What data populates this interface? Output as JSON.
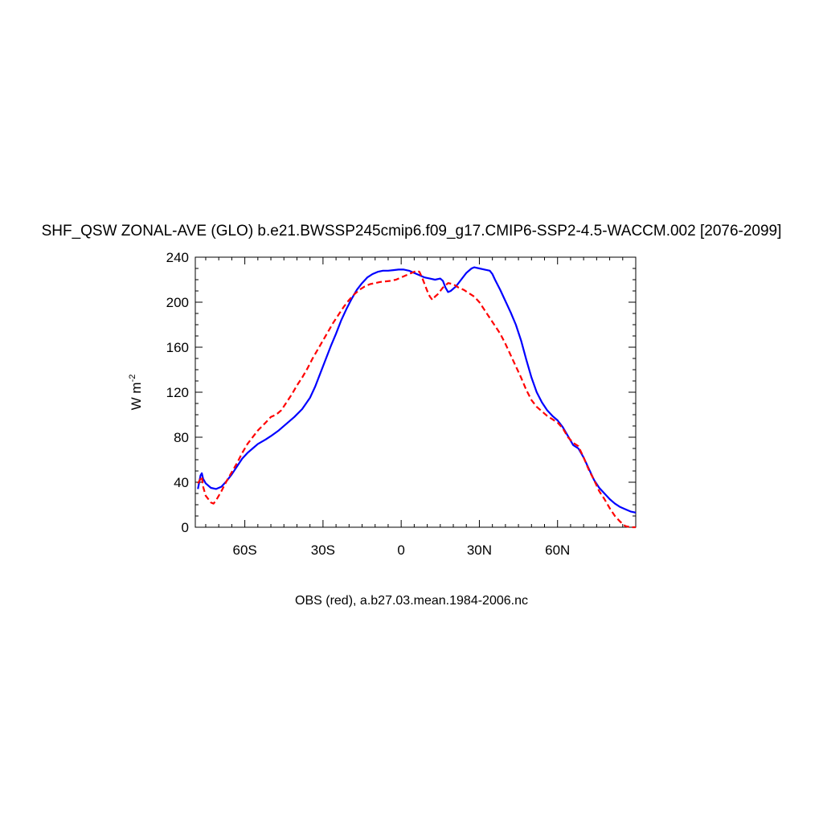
{
  "chart_data": {
    "type": "line",
    "title": "SHF_QSW ZONAL-AVE (GLO) b.e21.BWSSP245cmip6.f09_g17.CMIP6-SSP2-4.5-WACCM.002 [2076-2099]",
    "ylabel": "W m",
    "ylabel_sup": "-2",
    "caption": "OBS (red), a.b27.03.mean.1984-2006.nc",
    "xlim": [
      -79,
      90
    ],
    "ylim": [
      0,
      240
    ],
    "x_ticks": [
      {
        "value": -60,
        "label": "60S"
      },
      {
        "value": -30,
        "label": "30S"
      },
      {
        "value": 0,
        "label": "0"
      },
      {
        "value": 30,
        "label": "30N"
      },
      {
        "value": 60,
        "label": "60N"
      }
    ],
    "y_ticks": [
      {
        "value": 0,
        "label": "0"
      },
      {
        "value": 40,
        "label": "40"
      },
      {
        "value": 80,
        "label": "80"
      },
      {
        "value": 120,
        "label": "120"
      },
      {
        "value": 160,
        "label": "160"
      },
      {
        "value": 200,
        "label": "200"
      },
      {
        "value": 240,
        "label": "240"
      }
    ],
    "grid": false,
    "series": [
      {
        "color": "#0000ff",
        "dash": "solid",
        "points": [
          [
            -78,
            34
          ],
          [
            -77,
            46
          ],
          [
            -76.5,
            48
          ],
          [
            -76,
            43
          ],
          [
            -75,
            39
          ],
          [
            -73,
            35
          ],
          [
            -71,
            34
          ],
          [
            -69,
            36
          ],
          [
            -67,
            41
          ],
          [
            -65,
            47
          ],
          [
            -63,
            54
          ],
          [
            -61,
            61
          ],
          [
            -59,
            66
          ],
          [
            -57,
            70
          ],
          [
            -55,
            74
          ],
          [
            -52,
            78
          ],
          [
            -50,
            81
          ],
          [
            -47,
            86
          ],
          [
            -44,
            92
          ],
          [
            -41,
            98
          ],
          [
            -38,
            105
          ],
          [
            -35,
            115
          ],
          [
            -33,
            125
          ],
          [
            -31,
            137
          ],
          [
            -29,
            149
          ],
          [
            -27,
            161
          ],
          [
            -25,
            172
          ],
          [
            -23,
            184
          ],
          [
            -21,
            194
          ],
          [
            -19,
            203
          ],
          [
            -17,
            211
          ],
          [
            -15,
            217
          ],
          [
            -13,
            222
          ],
          [
            -11,
            225
          ],
          [
            -9,
            227
          ],
          [
            -7,
            228
          ],
          [
            -5,
            228
          ],
          [
            -3,
            228.5
          ],
          [
            -1,
            229
          ],
          [
            1,
            229
          ],
          [
            3,
            228
          ],
          [
            5,
            226
          ],
          [
            7,
            224
          ],
          [
            9,
            222
          ],
          [
            11,
            221
          ],
          [
            13,
            220
          ],
          [
            15,
            221
          ],
          [
            16,
            219
          ],
          [
            17,
            213
          ],
          [
            18,
            209
          ],
          [
            19,
            210
          ],
          [
            21,
            214
          ],
          [
            23,
            220
          ],
          [
            25,
            226
          ],
          [
            27,
            230
          ],
          [
            28,
            231
          ],
          [
            30,
            230
          ],
          [
            32,
            229
          ],
          [
            34,
            228
          ],
          [
            35,
            225
          ],
          [
            36,
            220
          ],
          [
            38,
            211
          ],
          [
            40,
            201
          ],
          [
            42,
            191
          ],
          [
            44,
            180
          ],
          [
            46,
            166
          ],
          [
            48,
            149
          ],
          [
            50,
            133
          ],
          [
            52,
            120
          ],
          [
            54,
            111
          ],
          [
            56,
            104
          ],
          [
            58,
            99
          ],
          [
            60,
            95
          ],
          [
            62,
            89
          ],
          [
            64,
            81
          ],
          [
            66,
            73
          ],
          [
            68,
            70
          ],
          [
            70,
            62
          ],
          [
            72,
            52
          ],
          [
            74,
            42
          ],
          [
            76,
            35
          ],
          [
            78,
            30
          ],
          [
            80,
            25
          ],
          [
            82,
            21
          ],
          [
            84,
            18
          ],
          [
            86,
            16
          ],
          [
            88,
            14
          ],
          [
            90,
            13
          ]
        ]
      },
      {
        "color": "#ff0000",
        "dash": "dashed",
        "points": [
          [
            -78,
            39
          ],
          [
            -77,
            43
          ],
          [
            -76.5,
            45
          ],
          [
            -76,
            36
          ],
          [
            -75,
            28
          ],
          [
            -73,
            22
          ],
          [
            -72,
            21
          ],
          [
            -71,
            24
          ],
          [
            -69,
            32
          ],
          [
            -67,
            41
          ],
          [
            -65,
            49
          ],
          [
            -63,
            57
          ],
          [
            -61,
            66
          ],
          [
            -59,
            74
          ],
          [
            -57,
            80
          ],
          [
            -55,
            86
          ],
          [
            -52,
            93
          ],
          [
            -50,
            98
          ],
          [
            -48,
            100
          ],
          [
            -46,
            104
          ],
          [
            -44,
            111
          ],
          [
            -42,
            118
          ],
          [
            -40,
            126
          ],
          [
            -38,
            133
          ],
          [
            -36,
            141
          ],
          [
            -34,
            150
          ],
          [
            -32,
            158
          ],
          [
            -30,
            166
          ],
          [
            -28,
            174
          ],
          [
            -26,
            182
          ],
          [
            -24,
            189
          ],
          [
            -22,
            196
          ],
          [
            -20,
            202
          ],
          [
            -18,
            207
          ],
          [
            -16,
            211
          ],
          [
            -14,
            214
          ],
          [
            -12,
            216
          ],
          [
            -10,
            217
          ],
          [
            -8,
            218
          ],
          [
            -6,
            218.5
          ],
          [
            -4,
            219
          ],
          [
            -2,
            220
          ],
          [
            0,
            222
          ],
          [
            2,
            224
          ],
          [
            4,
            226
          ],
          [
            6,
            228
          ],
          [
            7,
            227
          ],
          [
            8,
            222
          ],
          [
            9,
            216
          ],
          [
            10,
            210
          ],
          [
            11,
            205
          ],
          [
            12,
            202
          ],
          [
            13,
            205
          ],
          [
            14,
            207
          ],
          [
            16,
            213
          ],
          [
            18,
            217
          ],
          [
            20,
            216
          ],
          [
            22,
            213
          ],
          [
            24,
            211
          ],
          [
            26,
            208
          ],
          [
            28,
            205
          ],
          [
            30,
            200
          ],
          [
            32,
            193
          ],
          [
            34,
            186
          ],
          [
            36,
            179
          ],
          [
            38,
            172
          ],
          [
            40,
            163
          ],
          [
            42,
            153
          ],
          [
            44,
            143
          ],
          [
            46,
            133
          ],
          [
            48,
            122
          ],
          [
            50,
            113
          ],
          [
            52,
            107
          ],
          [
            54,
            103
          ],
          [
            56,
            99
          ],
          [
            58,
            96
          ],
          [
            60,
            93
          ],
          [
            62,
            88
          ],
          [
            64,
            80
          ],
          [
            66,
            75
          ],
          [
            68,
            72
          ],
          [
            70,
            62
          ],
          [
            72,
            51
          ],
          [
            74,
            42
          ],
          [
            76,
            32
          ],
          [
            78,
            25
          ],
          [
            80,
            17
          ],
          [
            82,
            10
          ],
          [
            84,
            5
          ],
          [
            86,
            1
          ],
          [
            88,
            0
          ],
          [
            90,
            0
          ]
        ]
      }
    ]
  }
}
